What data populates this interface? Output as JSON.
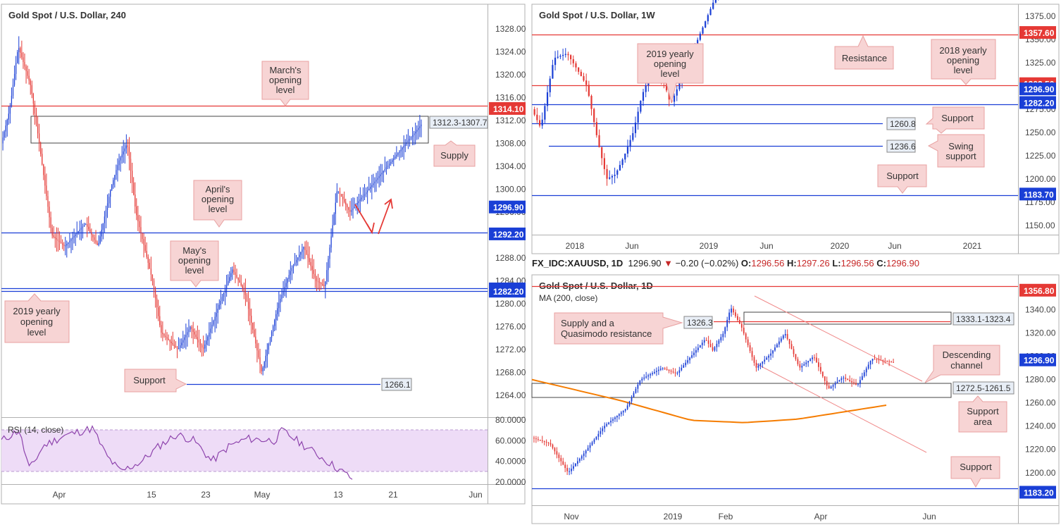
{
  "chart_data": [
    {
      "id": "h4",
      "type": "candlestick",
      "title": "Gold Spot / U.S. Dollar, 240",
      "ylim": [
        1260,
        1332
      ],
      "y_ticks": [
        1328,
        1324,
        1320,
        1316,
        1312,
        1308,
        1304,
        1300,
        1296,
        1292,
        1288,
        1284,
        1280,
        1276,
        1272,
        1268,
        1264
      ],
      "x_ticks": [
        "Apr",
        "15",
        "23",
        "May",
        "13",
        "21",
        "Jun"
      ],
      "price_labels": [
        {
          "text": "1314.10",
          "value": 1314.1,
          "color": "#e53935"
        },
        {
          "text": "1296.90",
          "value": 1296.9,
          "color": "#1a3fd6"
        },
        {
          "text": "1292.20",
          "value": 1292.2,
          "color": "#1a3fd6"
        },
        {
          "text": "1282.60",
          "value": 1282.6,
          "color": "#1a3fd6"
        },
        {
          "text": "1282.20",
          "value": 1282.2,
          "color": "#1a3fd6"
        }
      ],
      "levels": [
        {
          "value": 1314.1,
          "color": "#e53935"
        },
        {
          "value": 1292.2,
          "color": "#1a3fd6"
        },
        {
          "value": 1282.6,
          "color": "#1a3fd6"
        },
        {
          "value": 1282.2,
          "color": "#1a3fd6"
        },
        {
          "value": 1266.1,
          "color": "#1a3fd6",
          "label": "1266.1"
        }
      ],
      "zones": [
        {
          "low": 1307.7,
          "high": 1312.3,
          "label": "1312.3-1307.7"
        }
      ],
      "annotations": [
        {
          "lines": [
            "March's",
            "opening",
            "level"
          ]
        },
        {
          "lines": [
            "Supply"
          ]
        },
        {
          "lines": [
            "April's",
            "opening",
            "level"
          ]
        },
        {
          "lines": [
            "May's",
            "opening",
            "level"
          ]
        },
        {
          "lines": [
            "2019 yearly",
            "opening",
            "level"
          ]
        },
        {
          "lines": [
            "Support"
          ]
        }
      ],
      "rsi": {
        "label": "RSI (14, close)",
        "ylim": [
          20,
          80
        ],
        "y_ticks": [
          "80.0000",
          "60.0000",
          "40.0000",
          "20.0000"
        ],
        "band": [
          30,
          70
        ]
      }
    },
    {
      "id": "weekly",
      "type": "candlestick",
      "title": "Gold Spot / U.S. Dollar, 1W",
      "ylim": [
        1140,
        1385
      ],
      "y_ticks": [
        1375,
        1350,
        1325,
        1300,
        1275,
        1250,
        1225,
        1200,
        1175,
        1150
      ],
      "x_ticks": [
        "2018",
        "Jun",
        "2019",
        "Jun",
        "2020",
        "Jun",
        "2021"
      ],
      "price_labels": [
        {
          "text": "1357.60",
          "value": 1357.6,
          "color": "#e53935"
        },
        {
          "text": "1302.50",
          "value": 1302.5,
          "color": "#e53935"
        },
        {
          "text": "1296.90",
          "value": 1296.9,
          "color": "#1a3fd6"
        },
        {
          "text": "1282.20",
          "value": 1282.2,
          "color": "#1a3fd6"
        },
        {
          "text": "1183.70",
          "value": 1183.7,
          "color": "#1a3fd6"
        }
      ],
      "levels": [
        {
          "value": 1357.6,
          "color": "#e53935"
        },
        {
          "value": 1302.5,
          "color": "#e53935"
        },
        {
          "value": 1282.2,
          "color": "#1a3fd6"
        },
        {
          "value": 1260.8,
          "color": "#1a3fd6",
          "label": "1260.8"
        },
        {
          "value": 1236.6,
          "color": "#1a3fd6",
          "label": "1236.6"
        },
        {
          "value": 1183.7,
          "color": "#1a3fd6"
        }
      ],
      "annotations": [
        {
          "lines": [
            "2019 yearly",
            "opening",
            "level"
          ]
        },
        {
          "lines": [
            "Resistance"
          ]
        },
        {
          "lines": [
            "2018 yearly",
            "opening",
            "level"
          ]
        },
        {
          "lines": [
            "Support"
          ]
        },
        {
          "lines": [
            "Swing",
            "support"
          ]
        },
        {
          "lines": [
            "Support"
          ]
        }
      ]
    },
    {
      "id": "daily",
      "type": "candlestick",
      "title": "Gold Spot / U.S. Dollar, 1D",
      "subtitle": "MA (200, close)",
      "ylim": [
        1175,
        1370
      ],
      "y_ticks": [
        1340,
        1320,
        1300,
        1280,
        1260,
        1240,
        1220,
        1200
      ],
      "x_ticks": [
        "Nov",
        "2019",
        "Feb",
        "Apr",
        "Jun"
      ],
      "price_labels": [
        {
          "text": "1356.80",
          "value": 1356.8,
          "color": "#e53935"
        },
        {
          "text": "1296.90",
          "value": 1296.9,
          "color": "#1a3fd6"
        },
        {
          "text": "1183.20",
          "value": 1183.2,
          "color": "#1a3fd6"
        }
      ],
      "levels": [
        {
          "value": 1356.8,
          "color": "#e53935"
        },
        {
          "value": 1326.3,
          "color": "#e53935",
          "label": "1326.3"
        },
        {
          "value": 1183.2,
          "color": "#1a3fd6"
        }
      ],
      "zones": [
        {
          "low": 1323.4,
          "high": 1333.1,
          "label": "1333.1-1323.4"
        },
        {
          "low": 1261.5,
          "high": 1272.5,
          "label": "1272.5-1261.5"
        }
      ],
      "ma": {
        "name": "MA (200, close)",
        "color": "#f57c00"
      },
      "annotations": [
        {
          "lines": [
            "Supply and a",
            "Quasimodo resistance"
          ]
        },
        {
          "lines": [
            "Descending",
            "channel"
          ]
        },
        {
          "lines": [
            "Support",
            "area"
          ]
        },
        {
          "lines": [
            "Support"
          ]
        }
      ]
    }
  ],
  "ohlc_bar": {
    "symbol": "FX_IDC:XAUUSD, 1D",
    "price": "1296.90",
    "arrow": "▼",
    "change": "−0.20 (−0.02%)",
    "o_label": "O:",
    "o": "1296.56",
    "h_label": "H:",
    "h": "1297.26",
    "l_label": "L:",
    "l": "1296.56",
    "c_label": "C:",
    "c": "1296.90"
  },
  "colors": {
    "up": "#1a3fd6",
    "down": "#e53935",
    "red_line": "#e53935",
    "blue_line": "#1a3fd6",
    "callout_fill": "#f7d4d4",
    "callout_stroke": "#e8a0a0",
    "rsi": "#8e44ad"
  }
}
